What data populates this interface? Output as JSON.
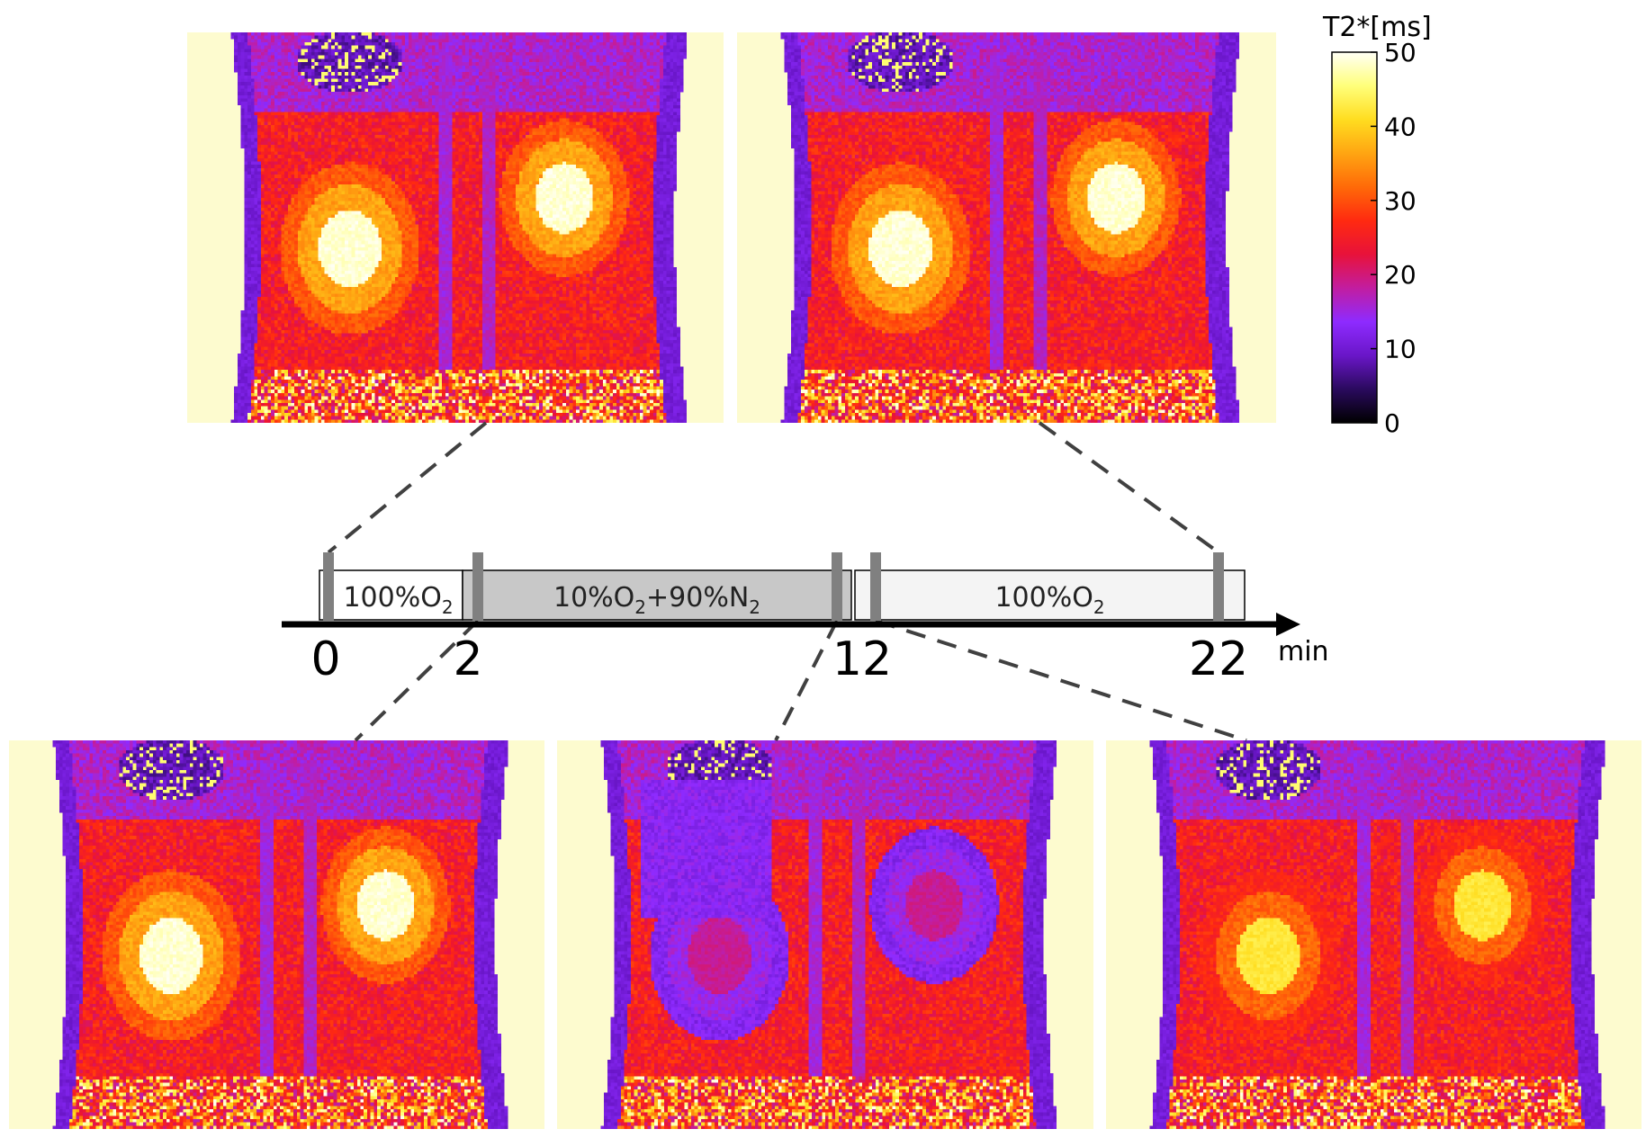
{
  "colorbar": {
    "title": "T2*[ms]",
    "ticks": [
      "0",
      "10",
      "20",
      "30",
      "40",
      "50"
    ],
    "tick_values": [
      0,
      10,
      20,
      30,
      40,
      50
    ],
    "range": [
      0,
      50
    ],
    "colormap": [
      "#000000",
      "#2a0a5e",
      "#6a16c8",
      "#8e2bff",
      "#c21da0",
      "#e8123a",
      "#ff2a10",
      "#ff6a08",
      "#ffa512",
      "#ffdd20",
      "#ffff7a",
      "#fffff5"
    ]
  },
  "timeline": {
    "unit": "min",
    "ticks": [
      {
        "label": "0",
        "value": 0
      },
      {
        "label": "2",
        "value": 2
      },
      {
        "label": "12",
        "value": 12
      },
      {
        "label": "22",
        "value": 22
      }
    ],
    "phases": [
      {
        "name": "100%O",
        "sub": "2",
        "suffix": "",
        "start": 0,
        "end": 2,
        "fill": "#ffffff"
      },
      {
        "name": "10%O",
        "sub": "2",
        "suffix": "+90%N",
        "sub2": "2",
        "start": 2,
        "end": 12,
        "fill": "#c8c8c8"
      },
      {
        "name": "100%O",
        "sub": "2",
        "suffix": "",
        "start": 12,
        "end": 22,
        "fill": "#f4f4f4"
      }
    ],
    "markers": [
      0,
      3.5,
      11.5,
      12.8,
      22
    ]
  },
  "panels": [
    {
      "id": "panel-top-left",
      "time": 0,
      "kidney": "bright"
    },
    {
      "id": "panel-top-right",
      "time": 22,
      "kidney": "bright"
    },
    {
      "id": "panel-bottom-left",
      "time": 2,
      "kidney": "bright"
    },
    {
      "id": "panel-bottom-middle",
      "time": 12,
      "kidney": "dark"
    },
    {
      "id": "panel-bottom-right",
      "time": 13,
      "kidney": "medium"
    }
  ],
  "colors": {
    "background_fill": "#fdfbcf",
    "connector": "#404040",
    "axis": "#000000",
    "marker": "#808080"
  }
}
